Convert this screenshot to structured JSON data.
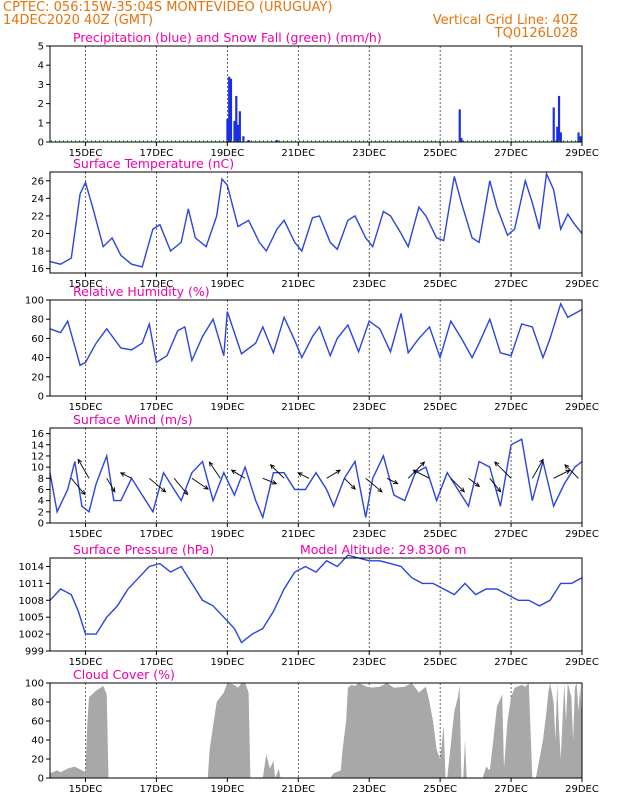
{
  "header": {
    "line1": "CPTEC:   056:15W-35:04S   MONTEVIDEO (URUGUAY)",
    "line2": "14DEC2020 40Z (GMT)",
    "grid_note": "Vertical Grid Line: 40Z",
    "code": "TQ0126L028"
  },
  "colors": {
    "line": "#2a44e0",
    "precip": "#1a2ee8",
    "snow": "#22aa22",
    "cloud": "#a8a8a8",
    "title": "#ee00aa",
    "header": "#e8720c"
  },
  "days": [
    "15DEC",
    "17DEC",
    "19DEC",
    "21DEC",
    "23DEC",
    "25DEC",
    "27DEC",
    "29DEC"
  ],
  "chart_data": [
    {
      "type": "bar",
      "title": "Precipitation (blue) and Snow Fall (green) (mm/h)",
      "x_unit": "day_of_december",
      "xlim": [
        14,
        29
      ],
      "ylim": [
        0,
        5
      ],
      "yticks": [
        0,
        1,
        2,
        3,
        4,
        5
      ],
      "series": [
        {
          "name": "Precipitation",
          "color": "#1a2ee8",
          "x": [
            19.0,
            19.05,
            19.1,
            19.2,
            19.25,
            19.3,
            19.35,
            19.45,
            19.6,
            20.4,
            25.55,
            25.6,
            28.2,
            28.3,
            28.35,
            28.4,
            28.9,
            28.95
          ],
          "values": [
            1.2,
            3.4,
            3.3,
            1.1,
            2.4,
            0.9,
            1.6,
            0.3,
            0.1,
            0.1,
            1.7,
            0.2,
            1.8,
            0.8,
            2.4,
            0.5,
            0.5,
            0.3
          ]
        },
        {
          "name": "Snow Fall",
          "color": "#22aa22",
          "x": [],
          "values": []
        }
      ]
    },
    {
      "type": "line",
      "title": "Surface Temperature (nC)",
      "x_unit": "day_of_december",
      "xlim": [
        14,
        29
      ],
      "ylim": [
        15.5,
        27
      ],
      "yticks": [
        16,
        18,
        20,
        22,
        24,
        26
      ],
      "x": [
        14.0,
        14.3,
        14.6,
        14.85,
        15.0,
        15.2,
        15.5,
        15.75,
        16.0,
        16.3,
        16.6,
        16.9,
        17.1,
        17.4,
        17.7,
        17.9,
        18.1,
        18.4,
        18.7,
        18.85,
        19.0,
        19.3,
        19.6,
        19.9,
        20.1,
        20.4,
        20.6,
        20.9,
        21.1,
        21.4,
        21.6,
        21.9,
        22.1,
        22.4,
        22.6,
        22.9,
        23.1,
        23.4,
        23.6,
        23.9,
        24.1,
        24.4,
        24.6,
        24.9,
        25.1,
        25.4,
        25.6,
        25.9,
        26.1,
        26.4,
        26.6,
        26.9,
        27.1,
        27.4,
        27.6,
        27.8,
        28.0,
        28.2,
        28.4,
        28.6,
        28.8,
        29.0
      ],
      "values": [
        16.8,
        16.5,
        17.2,
        24.5,
        25.8,
        23.0,
        18.5,
        19.5,
        17.5,
        16.5,
        16.2,
        20.5,
        21.0,
        18.0,
        19.0,
        22.8,
        19.5,
        18.5,
        22.0,
        26.2,
        25.5,
        20.8,
        21.5,
        19.0,
        18.0,
        20.5,
        21.5,
        19.0,
        18.0,
        21.8,
        22.0,
        19.0,
        18.2,
        21.5,
        22.0,
        19.5,
        18.5,
        22.5,
        22.0,
        20.0,
        18.5,
        23.0,
        22.0,
        19.5,
        19.2,
        26.5,
        23.5,
        19.5,
        19.0,
        26.0,
        23.0,
        19.8,
        20.5,
        26.0,
        23.5,
        20.5,
        26.8,
        25.0,
        20.5,
        22.2,
        21.0,
        20.0
      ]
    },
    {
      "type": "line",
      "title": "Relative Humidity (%)",
      "x_unit": "day_of_december",
      "xlim": [
        14,
        29
      ],
      "ylim": [
        0,
        100
      ],
      "yticks": [
        0,
        20,
        40,
        60,
        80,
        100
      ],
      "x": [
        14.0,
        14.3,
        14.5,
        14.85,
        15.0,
        15.3,
        15.6,
        16.0,
        16.3,
        16.6,
        16.8,
        17.0,
        17.3,
        17.6,
        17.8,
        18.0,
        18.3,
        18.6,
        18.9,
        19.0,
        19.4,
        19.8,
        20.0,
        20.3,
        20.6,
        20.9,
        21.1,
        21.4,
        21.6,
        21.9,
        22.1,
        22.4,
        22.7,
        23.0,
        23.3,
        23.6,
        23.9,
        24.1,
        24.4,
        24.7,
        25.0,
        25.3,
        25.6,
        25.9,
        26.1,
        26.4,
        26.7,
        27.0,
        27.3,
        27.6,
        27.9,
        28.1,
        28.4,
        28.6,
        28.9,
        29.0
      ],
      "values": [
        70,
        66,
        78,
        32,
        35,
        55,
        70,
        50,
        48,
        55,
        75,
        35,
        42,
        68,
        72,
        37,
        62,
        80,
        42,
        88,
        44,
        55,
        72,
        45,
        82,
        58,
        40,
        62,
        72,
        42,
        60,
        74,
        46,
        78,
        70,
        46,
        86,
        45,
        60,
        72,
        40,
        78,
        60,
        40,
        55,
        80,
        45,
        42,
        75,
        72,
        40,
        60,
        96,
        82,
        88,
        90
      ]
    },
    {
      "type": "line",
      "title": "Surface Wind (m/s)",
      "x_unit": "day_of_december",
      "xlim": [
        14,
        29
      ],
      "ylim": [
        0,
        17
      ],
      "yticks": [
        0,
        2,
        4,
        6,
        8,
        10,
        12,
        14,
        16
      ],
      "x": [
        14.0,
        14.2,
        14.5,
        14.7,
        14.9,
        15.1,
        15.3,
        15.6,
        15.8,
        16.0,
        16.3,
        16.6,
        16.9,
        17.2,
        17.5,
        17.7,
        18.0,
        18.3,
        18.6,
        18.9,
        19.2,
        19.5,
        19.8,
        20.0,
        20.3,
        20.6,
        20.9,
        21.2,
        21.5,
        21.8,
        22.0,
        22.3,
        22.6,
        22.9,
        23.1,
        23.4,
        23.7,
        24.0,
        24.3,
        24.6,
        24.9,
        25.2,
        25.5,
        25.8,
        26.1,
        26.4,
        26.7,
        27.0,
        27.3,
        27.6,
        27.9,
        28.2,
        28.5,
        28.8,
        29.0
      ],
      "values": [
        9,
        2,
        6,
        11,
        3,
        2,
        7,
        12,
        4,
        4,
        8,
        5,
        2,
        9,
        6,
        4,
        9,
        11,
        4,
        9,
        5,
        10,
        4,
        1,
        9,
        9,
        6,
        6,
        9,
        6,
        3,
        8,
        11,
        1,
        8,
        12,
        5,
        4,
        9,
        10,
        4,
        9,
        6,
        3,
        11,
        10,
        3,
        14,
        15,
        4,
        11,
        3,
        7,
        10,
        11
      ],
      "vectors": {
        "x": [
          14.6,
          15.1,
          15.6,
          16.3,
          16.8,
          17.5,
          18.0,
          18.8,
          19.5,
          20.0,
          20.6,
          21.3,
          21.8,
          22.3,
          22.9,
          23.5,
          24.1,
          24.7,
          25.3,
          25.8,
          26.4,
          27.0,
          27.6,
          28.2,
          28.9
        ],
        "u": [
          5,
          -4,
          3,
          -4,
          6,
          5,
          6,
          -4,
          -5,
          5,
          -5,
          -4,
          5,
          4,
          6,
          4,
          6,
          -6,
          5,
          4,
          4,
          -6,
          4,
          6,
          -5
        ],
        "v": [
          -6,
          7,
          -5,
          2,
          -5,
          -6,
          -4,
          6,
          3,
          -2,
          5,
          2,
          3,
          -4,
          -5,
          -2,
          6,
          3,
          -5,
          -3,
          -5,
          6,
          7,
          3,
          5
        ]
      }
    },
    {
      "type": "line",
      "title": "Surface Pressure (hPa)",
      "subtitle": "Model Altitude: 29.8306 m",
      "x_unit": "day_of_december",
      "xlim": [
        14,
        29
      ],
      "ylim": [
        999,
        1015.5
      ],
      "yticks": [
        999,
        1002,
        1005,
        1008,
        1011,
        1014
      ],
      "x": [
        14.0,
        14.3,
        14.6,
        14.8,
        15.0,
        15.3,
        15.6,
        15.9,
        16.2,
        16.5,
        16.8,
        17.1,
        17.4,
        17.7,
        18.0,
        18.3,
        18.6,
        18.9,
        19.2,
        19.4,
        19.7,
        20.0,
        20.3,
        20.6,
        20.9,
        21.2,
        21.5,
        21.8,
        22.1,
        22.4,
        22.7,
        23.0,
        23.3,
        23.6,
        23.9,
        24.2,
        24.5,
        24.8,
        25.1,
        25.4,
        25.7,
        26.0,
        26.3,
        26.6,
        26.9,
        27.2,
        27.5,
        27.8,
        28.1,
        28.4,
        28.7,
        29.0
      ],
      "values": [
        1008,
        1010,
        1009,
        1006,
        1002,
        1002,
        1005,
        1007,
        1010,
        1012,
        1014,
        1014.5,
        1013,
        1014,
        1011,
        1008,
        1007,
        1005,
        1003,
        1000.5,
        1002,
        1003,
        1006,
        1010,
        1013,
        1014,
        1013,
        1015,
        1014,
        1016,
        1015.5,
        1015,
        1015,
        1014.5,
        1014,
        1012,
        1011,
        1011,
        1010,
        1009,
        1011,
        1009,
        1010,
        1010,
        1009,
        1008,
        1008,
        1007,
        1008,
        1011,
        1011,
        1012
      ]
    },
    {
      "type": "area",
      "title": "Cloud Cover (%)",
      "x_unit": "day_of_december",
      "xlim": [
        14,
        29
      ],
      "ylim": [
        0,
        100
      ],
      "yticks": [
        0,
        20,
        40,
        60,
        80,
        100
      ],
      "x": [
        14.0,
        14.2,
        14.3,
        14.5,
        14.7,
        15.0,
        15.05,
        15.1,
        15.3,
        15.5,
        15.6,
        15.65,
        16.0,
        18.45,
        18.5,
        18.6,
        18.7,
        18.9,
        19.0,
        19.2,
        19.3,
        19.4,
        19.5,
        19.6,
        19.65,
        20.0,
        20.1,
        20.2,
        20.3,
        20.35,
        20.45,
        20.5,
        21.9,
        22.0,
        22.2,
        22.25,
        22.35,
        22.4,
        22.5,
        22.6,
        22.7,
        23.0,
        23.3,
        23.5,
        23.7,
        24.0,
        24.2,
        24.4,
        24.6,
        24.7,
        24.8,
        24.9,
        25.0,
        25.1,
        25.15,
        25.2,
        25.4,
        25.5,
        25.55,
        25.6,
        25.65,
        25.7,
        25.75,
        26.2,
        26.3,
        26.4,
        26.5,
        26.6,
        26.75,
        26.8,
        26.9,
        27.0,
        27.1,
        27.3,
        27.4,
        27.5,
        27.6,
        27.7,
        27.8,
        27.9,
        28.0,
        28.05,
        28.1,
        28.2,
        28.25,
        28.3,
        28.35,
        28.4,
        28.5,
        28.55,
        28.6,
        28.7,
        28.75,
        28.8,
        28.85,
        28.9,
        28.95,
        29.0
      ],
      "values": [
        5,
        8,
        6,
        10,
        12,
        6,
        55,
        85,
        92,
        97,
        88,
        0,
        0,
        0,
        30,
        55,
        80,
        90,
        100,
        98,
        95,
        100,
        100,
        90,
        0,
        0,
        25,
        10,
        18,
        0,
        10,
        0,
        0,
        5,
        8,
        30,
        60,
        95,
        98,
        97,
        100,
        95,
        96,
        100,
        95,
        96,
        100,
        90,
        96,
        80,
        60,
        30,
        20,
        55,
        0,
        0,
        70,
        85,
        98,
        0,
        0,
        40,
        0,
        0,
        12,
        8,
        40,
        75,
        88,
        10,
        60,
        85,
        95,
        98,
        96,
        100,
        0,
        0,
        20,
        40,
        70,
        90,
        100,
        80,
        40,
        100,
        55,
        20,
        100,
        60,
        100,
        85,
        40,
        95,
        100,
        70,
        98,
        60
      ]
    }
  ]
}
